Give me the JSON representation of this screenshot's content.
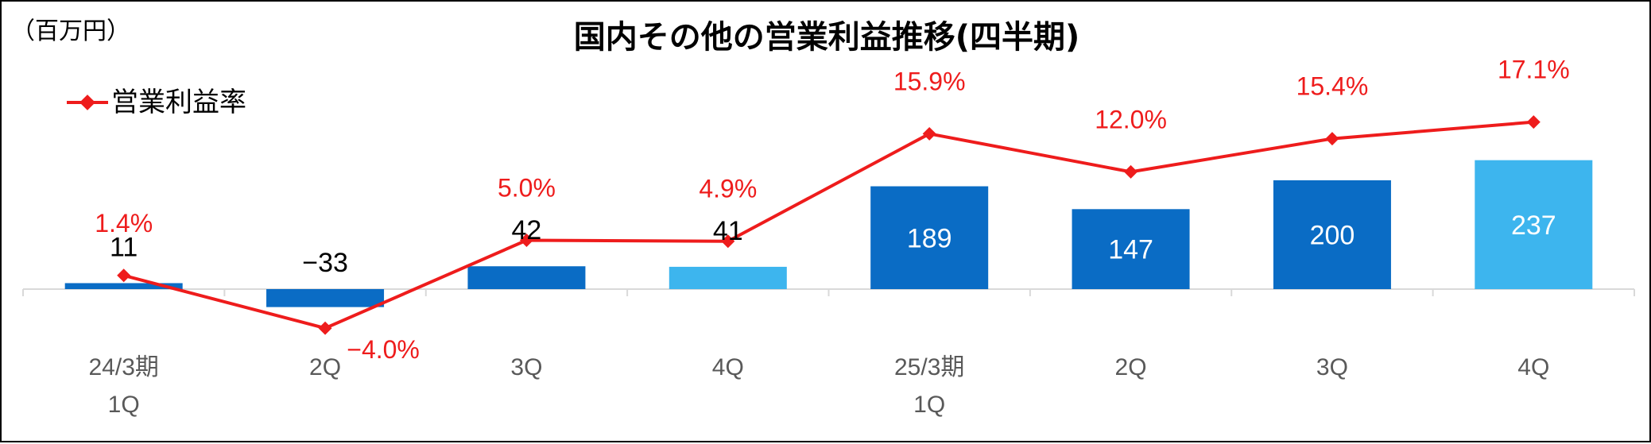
{
  "chart_data": {
    "type": "bar",
    "title": "国内その他の営業利益推移(四半期)",
    "unit_label": "（百万円）",
    "categories": [
      [
        "24/3期",
        "1Q"
      ],
      [
        "2Q"
      ],
      [
        "3Q"
      ],
      [
        "4Q"
      ],
      [
        "25/3期",
        "1Q"
      ],
      [
        "2Q"
      ],
      [
        "3Q"
      ],
      [
        "4Q"
      ]
    ],
    "series": [
      {
        "kind": "bar",
        "values": [
          11,
          -33,
          42,
          41,
          189,
          147,
          200,
          237
        ],
        "value_labels": [
          "11",
          "−33",
          "42",
          "41",
          "189",
          "147",
          "200",
          "237"
        ],
        "colors": [
          "#0a6cc5",
          "#0a6cc5",
          "#0a6cc5",
          "#3db5ee",
          "#0a6cc5",
          "#0a6cc5",
          "#0a6cc5",
          "#3db5ee"
        ]
      },
      {
        "kind": "line",
        "name": "営業利益率",
        "color": "#ee1c1c",
        "values": [
          1.4,
          -4.0,
          5.0,
          4.9,
          15.9,
          12.0,
          15.4,
          17.1
        ],
        "value_labels": [
          "1.4%",
          "−4.0%",
          "5.0%",
          "4.9%",
          "15.9%",
          "12.0%",
          "15.4%",
          "17.1%"
        ]
      }
    ],
    "legend": {
      "position": "top-left",
      "entries": [
        "営業利益率"
      ]
    },
    "grid": false,
    "y_axis_visible": false
  }
}
